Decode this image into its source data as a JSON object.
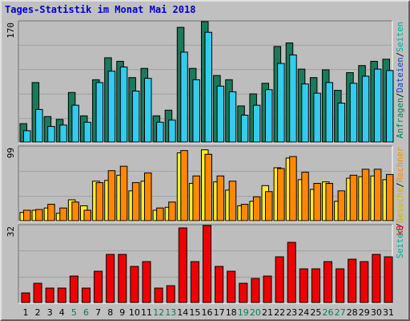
{
  "chart_data": {
    "type": "bar",
    "title": "Tages-Statistik im Monat Mai 2018",
    "days": [
      1,
      2,
      3,
      4,
      5,
      6,
      7,
      8,
      9,
      10,
      11,
      12,
      13,
      14,
      15,
      16,
      17,
      18,
      19,
      20,
      21,
      22,
      23,
      24,
      25,
      26,
      27,
      28,
      29,
      30,
      31
    ],
    "weekend_days": [
      5,
      6,
      12,
      13,
      19,
      20,
      26,
      27
    ],
    "panels": [
      {
        "ymax_label": "99",
        "ymax": 170,
        "ylabel_parts": [
          "Anfragen",
          "/",
          "Dateien",
          "/",
          "Seiten"
        ],
        "series": [
          {
            "name": "Anfragen",
            "color": "#1a7a5a",
            "values": [
              26,
              84,
              36,
              32,
              70,
              37,
              88,
              119,
              114,
              91,
              104,
              37,
              45,
              162,
              104,
              175,
              94,
              88,
              51,
              68,
              83,
              135,
              140,
              103,
              91,
              102,
              73,
              98,
              108,
              114,
              117
            ]
          },
          {
            "name": "Dateien",
            "color": "#33ccee",
            "values": [
              16,
              46,
              22,
              24,
              52,
              28,
              84,
              100,
              106,
              72,
              90,
              28,
              31,
              127,
              88,
              155,
              79,
              71,
              38,
              52,
              74,
              111,
              123,
              82,
              69,
              84,
              55,
              83,
              93,
              103,
              101
            ]
          }
        ]
      },
      {
        "ymax_label": "32",
        "ymax": 99,
        "ylabel_parts": [
          "Seiten",
          "/",
          "Besuche",
          "/",
          "Rechner"
        ],
        "series": [
          {
            "name": "Besuche",
            "color": "#ffee22",
            "values": [
              11,
              14,
              17,
              10,
              28,
              20,
              53,
              54,
              61,
              40,
              53,
              14,
              18,
              91,
              50,
              95,
              52,
              41,
              20,
              26,
              47,
              71,
              84,
              55,
              42,
              52,
              26,
              57,
              59,
              60,
              55
            ]
          },
          {
            "name": "Rechner",
            "color": "#ff8800",
            "values": [
              14,
              15,
              22,
              17,
              25,
              14,
              51,
              67,
              73,
              51,
              64,
              17,
              25,
              94,
              60,
              89,
              60,
              53,
              22,
              32,
              39,
              70,
              86,
              65,
              50,
              50,
              40,
              61,
              69,
              69,
              62
            ]
          }
        ]
      },
      {
        "ymax_label": "",
        "ymax": 32,
        "ylabel_parts": [
          "kB"
        ],
        "series": [
          {
            "name": "kB",
            "color": "#ee0000",
            "values": [
              4,
              8,
              6,
              6,
              11,
              6,
              13,
              20,
              20,
              15,
              17,
              6,
              7,
              31,
              17,
              33,
              15,
              13,
              8,
              10,
              11,
              19,
              25,
              14,
              14,
              17,
              14,
              18,
              17,
              20,
              19
            ]
          }
        ]
      }
    ]
  },
  "colors": {
    "background": "#c0c0c0",
    "weekday_label": "#000000",
    "weekend_label": "#00805a",
    "title": "#0000cc",
    "ylabel_anfragen": "#00805a",
    "ylabel_dateien": "#0044cc",
    "ylabel_seiten": "#00aaaa",
    "ylabel_besuche": "#d4b400",
    "ylabel_rechner": "#ff8800",
    "ylabel_kb": "#ee0000"
  }
}
